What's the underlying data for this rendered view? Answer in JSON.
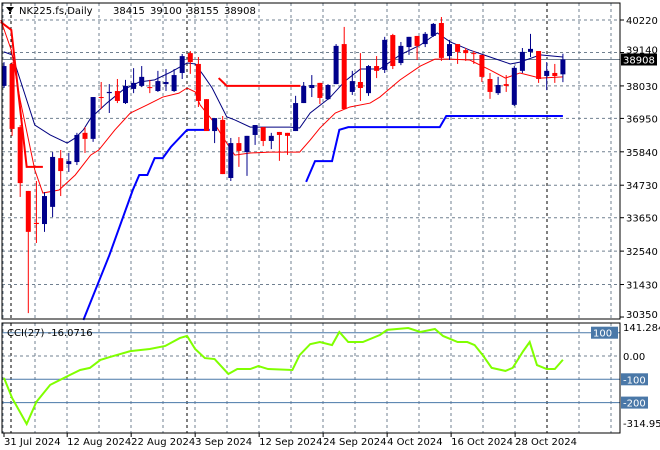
{
  "header": {
    "symbol": "NK225.fs,Daily",
    "open": "38415",
    "high": "39100",
    "low": "38155",
    "close": "38908"
  },
  "indicator_label": "CCI(27) -16.0716",
  "colors": {
    "bull": "#00008b",
    "bear": "#ff0000",
    "support": "#0000ff",
    "resistance": "#ff0000",
    "ma_slow": "#000080",
    "ma_fast": "#ff0000",
    "cci": "#80ff00",
    "level": "#4a78a8"
  },
  "chart_data": [
    {
      "type": "candlestick",
      "title": "NK225.fs,Daily",
      "ylim": [
        30350,
        40220
      ],
      "y_ticks": [
        "40220",
        "39140",
        "38030",
        "36950",
        "35840",
        "34730",
        "33650",
        "32540",
        "31430",
        "30350"
      ],
      "x_ticks": [
        {
          "index": 0,
          "label": "31 Jul 2024"
        },
        {
          "index": 7.8,
          "label": "12 Aug 2024"
        },
        {
          "index": 15.7,
          "label": "22 Aug 2024"
        },
        {
          "index": 23.6,
          "label": "3 Sep 2024"
        },
        {
          "index": 31.5,
          "label": "12 Sep 2024"
        },
        {
          "index": 39.4,
          "label": "24 Sep 2024"
        },
        {
          "index": 47.3,
          "label": "4 Oct 2024"
        },
        {
          "index": 55.2,
          "label": "16 Oct 2024"
        },
        {
          "index": 63.1,
          "label": "28 Oct 2024"
        }
      ],
      "current_price": "38908",
      "ohlc": [
        [
          38030,
          38820,
          37960,
          38690
        ],
        [
          38760,
          38820,
          36370,
          36600
        ],
        [
          36660,
          36730,
          34340,
          34800
        ],
        [
          34540,
          34540,
          30480,
          33180
        ],
        [
          33480,
          34870,
          32810,
          33440
        ],
        [
          33440,
          34500,
          33180,
          34370
        ],
        [
          34010,
          35830,
          33670,
          35670
        ],
        [
          35630,
          35900,
          34370,
          35200
        ],
        [
          35430,
          35800,
          35170,
          35530
        ],
        [
          35500,
          36470,
          35400,
          36400
        ],
        [
          36470,
          36660,
          35800,
          36270
        ],
        [
          36270,
          37660,
          36170,
          37660
        ],
        [
          37660,
          38160,
          37260,
          37630
        ],
        [
          37790,
          38090,
          37130,
          37830
        ],
        [
          37860,
          38260,
          37460,
          37530
        ],
        [
          37460,
          38230,
          37430,
          38030
        ],
        [
          37930,
          38620,
          37790,
          38130
        ],
        [
          38030,
          38690,
          37990,
          38330
        ],
        [
          37990,
          38230,
          37790,
          37960
        ],
        [
          37860,
          38530,
          37830,
          38190
        ],
        [
          38090,
          38590,
          37860,
          38160
        ],
        [
          37860,
          38590,
          37830,
          38390
        ],
        [
          38460,
          39090,
          38260,
          39020
        ],
        [
          39120,
          39190,
          38430,
          38820
        ],
        [
          38760,
          38990,
          37330,
          37530
        ],
        [
          37590,
          37590,
          36530,
          36530
        ],
        [
          36530,
          36960,
          36130,
          36960
        ],
        [
          36900,
          37030,
          35100,
          35100
        ],
        [
          34970,
          36300,
          34870,
          36130
        ],
        [
          36130,
          36330,
          35340,
          35870
        ],
        [
          35830,
          36370,
          35040,
          36370
        ],
        [
          36400,
          36730,
          36070,
          36730
        ],
        [
          36660,
          36660,
          36030,
          36200
        ],
        [
          36200,
          36470,
          35930,
          36370
        ],
        [
          36500,
          36500,
          35540,
          36400
        ],
        [
          36470,
          36470,
          35740,
          36370
        ],
        [
          36530,
          37700,
          36530,
          37460
        ],
        [
          37460,
          38160,
          37460,
          38030
        ],
        [
          37960,
          38390,
          37660,
          38060
        ],
        [
          38130,
          38130,
          37430,
          37630
        ],
        [
          37590,
          38090,
          37560,
          38060
        ],
        [
          38090,
          39420,
          38090,
          39360
        ],
        [
          39420,
          39990,
          37260,
          37260
        ],
        [
          37830,
          38530,
          37730,
          38190
        ],
        [
          38160,
          39120,
          37530,
          37960
        ],
        [
          37790,
          38720,
          37700,
          38690
        ],
        [
          38690,
          39020,
          38290,
          38530
        ],
        [
          38560,
          39660,
          38460,
          39560
        ],
        [
          39720,
          39760,
          38590,
          38690
        ],
        [
          38790,
          39490,
          38720,
          39360
        ],
        [
          39320,
          39660,
          39060,
          39660
        ],
        [
          39690,
          39690,
          38890,
          39360
        ],
        [
          39420,
          39820,
          39320,
          39760
        ],
        [
          39690,
          40120,
          39660,
          40090
        ],
        [
          40120,
          40320,
          38860,
          38960
        ],
        [
          39020,
          39560,
          38890,
          39420
        ],
        [
          39420,
          39420,
          38760,
          39160
        ],
        [
          39220,
          39290,
          38860,
          39120
        ],
        [
          39120,
          39190,
          38760,
          39090
        ],
        [
          39060,
          39060,
          38160,
          38330
        ],
        [
          38260,
          38460,
          37600,
          37830
        ],
        [
          37790,
          38330,
          37730,
          38060
        ],
        [
          38090,
          38390,
          37830,
          38030
        ],
        [
          37400,
          38690,
          37360,
          38630
        ],
        [
          38530,
          39290,
          38460,
          39160
        ],
        [
          39160,
          39760,
          38990,
          39260
        ],
        [
          39190,
          39190,
          38130,
          38260
        ],
        [
          38360,
          38820,
          37890,
          38530
        ],
        [
          38460,
          38760,
          38130,
          38360
        ],
        [
          38415,
          39100,
          38155,
          38908
        ]
      ],
      "ma_slow": [
        [
          0,
          39160
        ],
        [
          1,
          39060
        ],
        [
          2,
          38230
        ],
        [
          3.8,
          36730
        ],
        [
          5.7,
          36400
        ],
        [
          7.8,
          36130
        ],
        [
          8.8,
          36300
        ],
        [
          9.8,
          36570
        ],
        [
          10.7,
          36960
        ],
        [
          12.7,
          37460
        ],
        [
          14.7,
          37900
        ],
        [
          16.7,
          38160
        ],
        [
          18.6,
          38230
        ],
        [
          20.6,
          38490
        ],
        [
          22.6,
          38790
        ],
        [
          23.6,
          38760
        ],
        [
          24.6,
          38390
        ],
        [
          25.7,
          37960
        ],
        [
          27.5,
          37000
        ],
        [
          28.5,
          36900
        ],
        [
          30.4,
          36660
        ],
        [
          35.3,
          36660
        ],
        [
          36.5,
          36630
        ],
        [
          37.8,
          37130
        ],
        [
          40.2,
          37630
        ],
        [
          42.1,
          38190
        ],
        [
          44,
          38590
        ],
        [
          46.4,
          38590
        ],
        [
          48.9,
          39060
        ],
        [
          51.4,
          39390
        ],
        [
          53.5,
          39790
        ],
        [
          55.1,
          39490
        ],
        [
          57.5,
          39220
        ],
        [
          60,
          38990
        ],
        [
          62.5,
          38760
        ],
        [
          63.7,
          38820
        ],
        [
          66.2,
          39060
        ],
        [
          69,
          38990
        ]
      ],
      "ma_fast": [
        [
          -0.4,
          40220
        ],
        [
          0.9,
          39220
        ],
        [
          2,
          37560
        ],
        [
          3.8,
          35240
        ],
        [
          4.8,
          34470
        ],
        [
          6.8,
          34570
        ],
        [
          8.8,
          35070
        ],
        [
          10.7,
          35730
        ],
        [
          11.7,
          35900
        ],
        [
          13.7,
          36570
        ],
        [
          15.6,
          37130
        ],
        [
          17.7,
          37400
        ],
        [
          19.6,
          37660
        ],
        [
          21.6,
          37790
        ],
        [
          22.6,
          37960
        ],
        [
          23.6,
          37830
        ],
        [
          24.2,
          37400
        ],
        [
          25.7,
          36900
        ],
        [
          27.5,
          36130
        ],
        [
          28.5,
          35730
        ],
        [
          30.4,
          35800
        ],
        [
          32.8,
          35830
        ],
        [
          36.5,
          35830
        ],
        [
          37.8,
          36230
        ],
        [
          39,
          36630
        ],
        [
          40.9,
          37130
        ],
        [
          42.7,
          37330
        ],
        [
          45.2,
          37460
        ],
        [
          46.4,
          37660
        ],
        [
          48.9,
          38230
        ],
        [
          51.4,
          38690
        ],
        [
          53.2,
          38920
        ],
        [
          55.1,
          38920
        ],
        [
          57.5,
          38890
        ],
        [
          60,
          38560
        ],
        [
          61.9,
          38290
        ],
        [
          63.7,
          38460
        ],
        [
          66.2,
          38290
        ],
        [
          69,
          38330
        ]
      ],
      "support_line": [
        [
          [
            9.8,
            30250
          ],
          [
            13,
            32400
          ],
          [
            15.9,
            34570
          ],
          [
            16.7,
            35070
          ],
          [
            17.7,
            35070
          ],
          [
            18.6,
            35630
          ],
          [
            19.6,
            35630
          ],
          [
            20.6,
            36000
          ],
          [
            22.6,
            36570
          ],
          [
            25.4,
            36570
          ]
        ],
        [
          [
            37.3,
            34840
          ],
          [
            38.4,
            35530
          ],
          [
            40.5,
            35530
          ],
          [
            41.4,
            36570
          ],
          [
            42.5,
            36660
          ],
          [
            53.8,
            36660
          ],
          [
            54.6,
            37030
          ],
          [
            69,
            37030
          ]
        ]
      ],
      "resistance_line": [
        [
          [
            -0.4,
            40150
          ],
          [
            0.9,
            39890
          ],
          [
            2.8,
            35340
          ],
          [
            4.8,
            35340
          ]
        ],
        [
          [
            26.5,
            38290
          ],
          [
            27.5,
            38030
          ],
          [
            36.6,
            38030
          ]
        ]
      ]
    },
    {
      "type": "line",
      "title": "CCI(27)",
      "ylim": [
        -314.953,
        141.2847
      ],
      "y_ticks": [
        "141.2847",
        "0.00",
        "-314.953"
      ],
      "levels": [
        "100",
        "-100",
        "-200"
      ],
      "last_value": -16.0716,
      "points": [
        [
          0,
          -94
        ],
        [
          1,
          -180
        ],
        [
          2.8,
          -292
        ],
        [
          4,
          -197
        ],
        [
          5.7,
          -124
        ],
        [
          6.9,
          -103
        ],
        [
          8.1,
          -82
        ],
        [
          9.4,
          -60
        ],
        [
          10.6,
          -51
        ],
        [
          11.9,
          -17
        ],
        [
          13.1,
          -4
        ],
        [
          15.6,
          21
        ],
        [
          18,
          30
        ],
        [
          19.9,
          43
        ],
        [
          21.7,
          77
        ],
        [
          22.6,
          86
        ],
        [
          23.6,
          30
        ],
        [
          24.8,
          -9
        ],
        [
          26,
          -13
        ],
        [
          27.7,
          -77
        ],
        [
          28.8,
          -56
        ],
        [
          30.4,
          -56
        ],
        [
          31.4,
          -43
        ],
        [
          32.6,
          -56
        ],
        [
          35.6,
          -60
        ],
        [
          36.5,
          4
        ],
        [
          37.8,
          51
        ],
        [
          39,
          60
        ],
        [
          40.5,
          47
        ],
        [
          41.4,
          103
        ],
        [
          42.5,
          60
        ],
        [
          44.3,
          60
        ],
        [
          46.4,
          90
        ],
        [
          47.3,
          112
        ],
        [
          49.9,
          120
        ],
        [
          51.4,
          103
        ],
        [
          53.2,
          116
        ],
        [
          54.2,
          86
        ],
        [
          56,
          60
        ],
        [
          57.2,
          60
        ],
        [
          58.1,
          47
        ],
        [
          59.1,
          4
        ],
        [
          60.2,
          -51
        ],
        [
          61.9,
          -64
        ],
        [
          62.8,
          -51
        ],
        [
          64.1,
          21
        ],
        [
          64.9,
          60
        ],
        [
          65.8,
          -39
        ],
        [
          67,
          -56
        ],
        [
          68,
          -56
        ],
        [
          69,
          -16.07
        ]
      ]
    }
  ]
}
